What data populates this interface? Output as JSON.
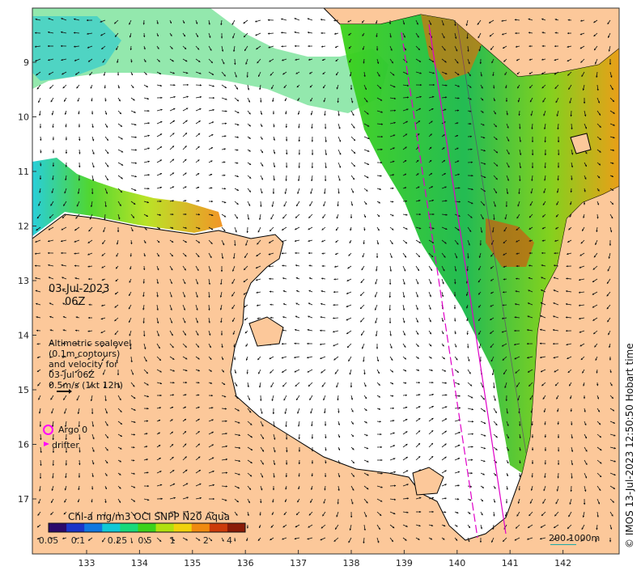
{
  "map": {
    "date": "03-Jul-2023",
    "hour": "06Z",
    "altimetry_lines": [
      "Altimetric sealevel",
      "(0.1m contours)",
      "and velocity for",
      "03-Jul 06Z",
      "0.5m/s (1kt 12h)"
    ],
    "legend": {
      "argo_label": "Argo 0",
      "drifter_label": "drifter"
    },
    "colorbar": {
      "title": "Chl-a mg/m3 OCI SNPP N20 Aqua",
      "ticks": [
        "0.05",
        "0.1",
        "0.25",
        "0.5",
        "1",
        "2",
        "4"
      ],
      "colors": [
        "#2a0a6b",
        "#1b35c9",
        "#1177e0",
        "#11c9d6",
        "#18d97a",
        "#3dd21a",
        "#b2e00f",
        "#f0d20c",
        "#f08a0f",
        "#cc3a0a",
        "#8a1b07"
      ]
    },
    "lon_ticks": [
      "133",
      "134",
      "135",
      "136",
      "137",
      "138",
      "139",
      "140",
      "141",
      "142"
    ],
    "lat_ticks": [
      "9",
      "10",
      "11",
      "12",
      "13",
      "14",
      "15",
      "16",
      "17"
    ],
    "scalebar": "200  1000m",
    "credit": "© IMOS 13-Jul-2023 12:50:50 Hobart time",
    "colors": {
      "land": "#fcc89a",
      "sea_nodata": "#ffffff",
      "track": "#e000c8",
      "arrow": "#111111",
      "coast": "#000000"
    }
  }
}
